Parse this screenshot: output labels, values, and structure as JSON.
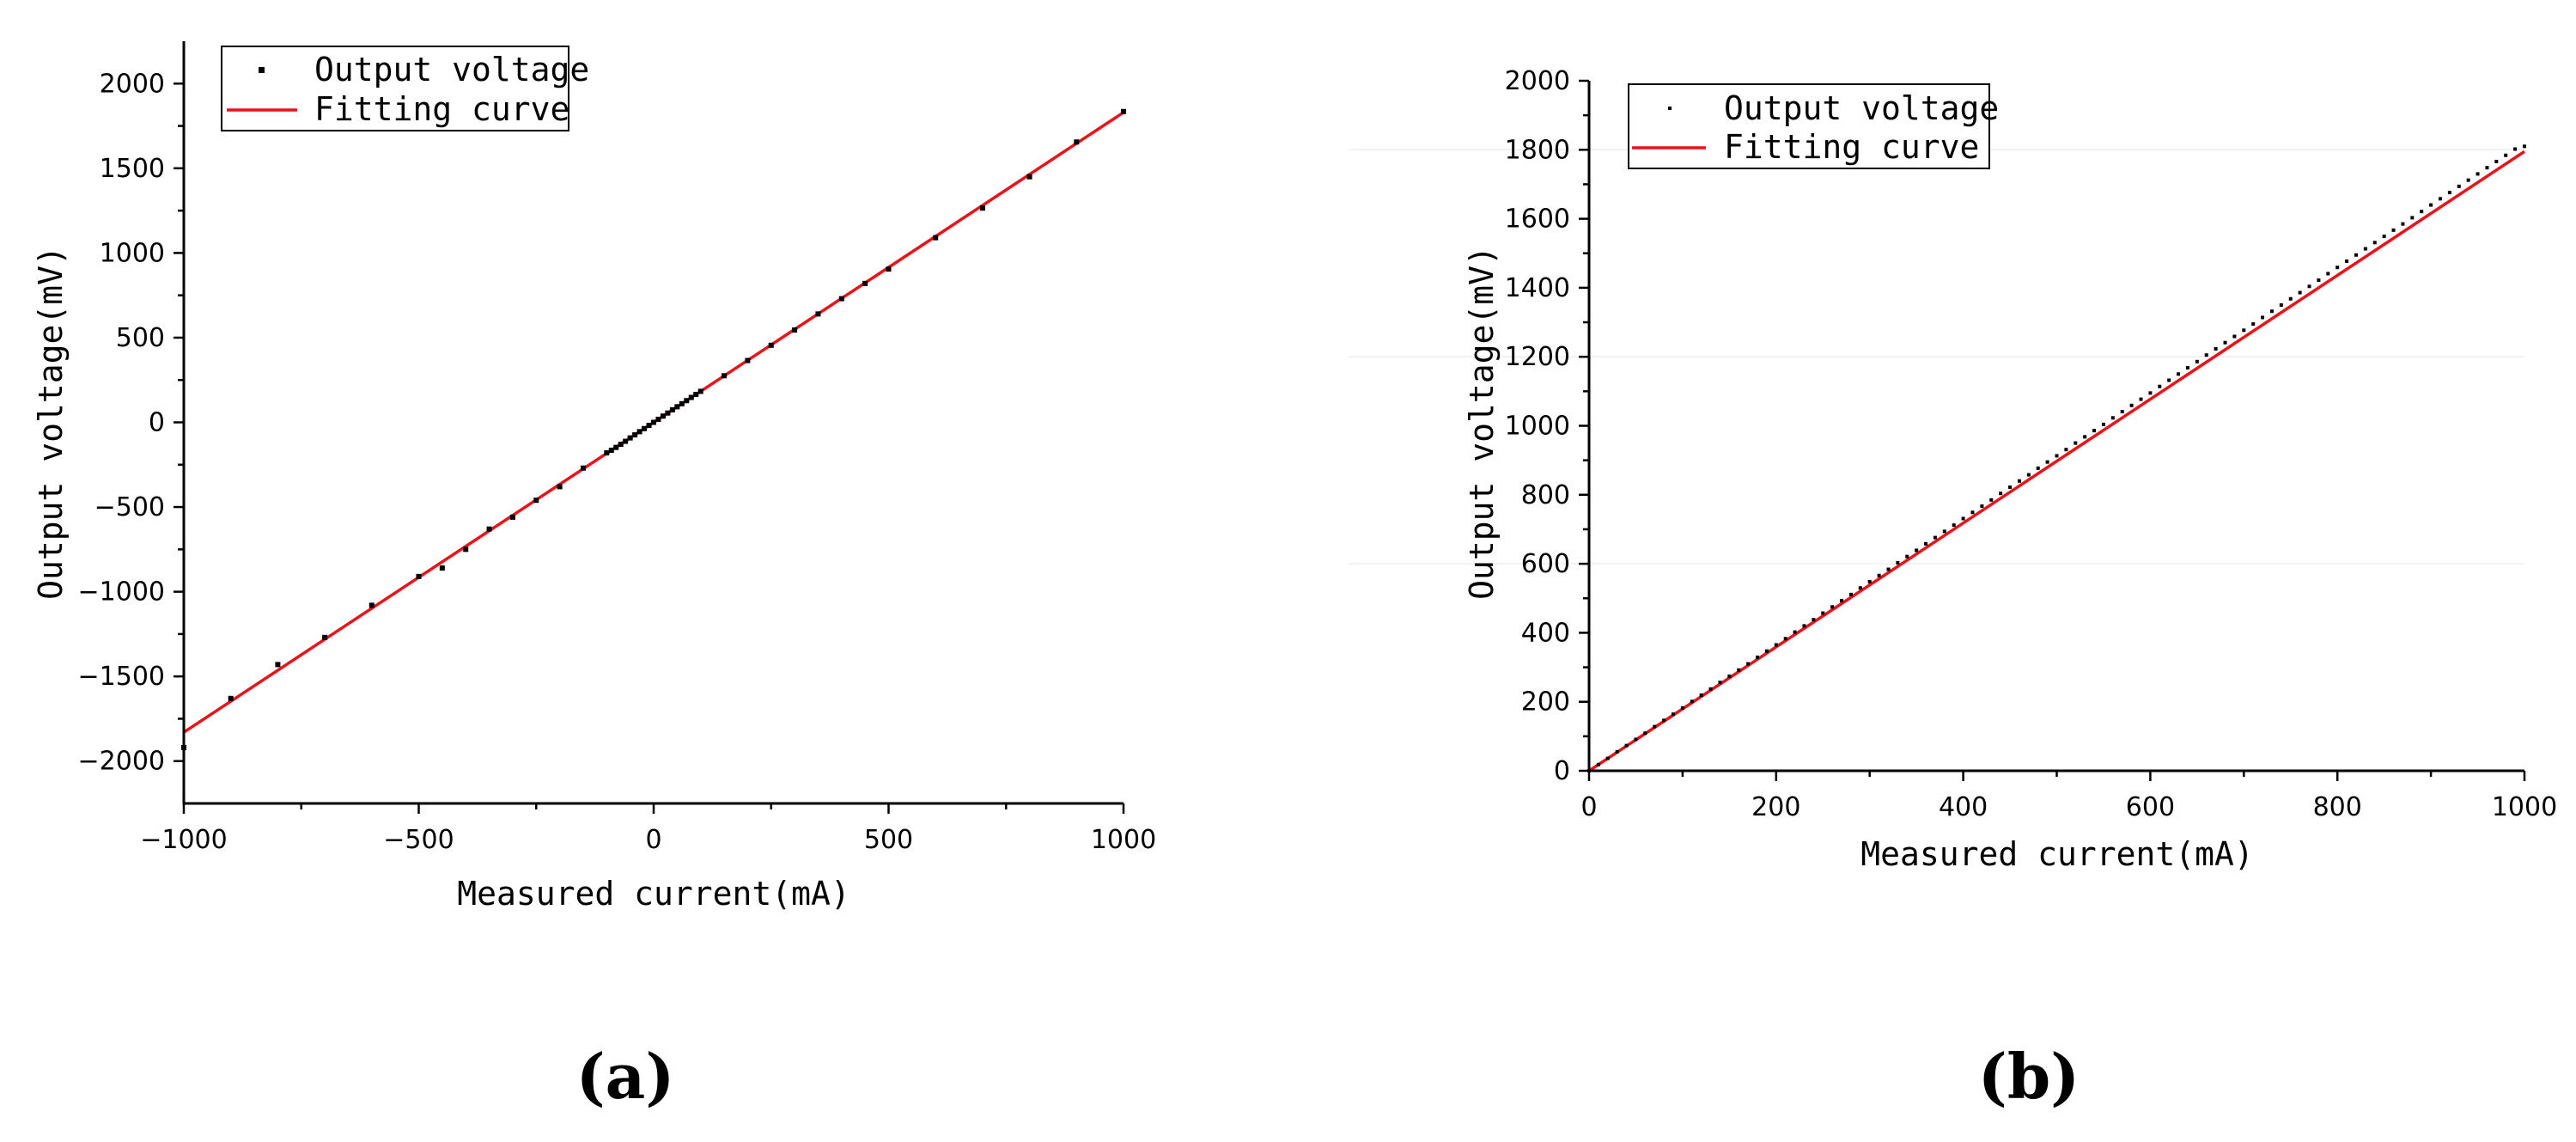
{
  "chart_data": [
    {
      "type": "scatter",
      "panel_label": "(a)",
      "xlabel": "Measured current(mA)",
      "ylabel": "Output voltage(mV)",
      "xlim": [
        -1000,
        1000
      ],
      "ylim": [
        -2250,
        2250
      ],
      "x_ticks": [
        -1000,
        -500,
        0,
        500,
        1000
      ],
      "y_ticks": [
        -2000,
        -1500,
        -1000,
        -500,
        0,
        500,
        1000,
        1500,
        2000
      ],
      "x_tick_labels": [
        "−1000",
        "−500",
        "0",
        "500",
        "1000"
      ],
      "y_tick_labels": [
        "−2000",
        "−1500",
        "−1000",
        "−500",
        "0",
        "500",
        "1000",
        "1500",
        "2000"
      ],
      "legend_position": "top-left",
      "legend": [
        "Output voltage",
        "Fitting curve"
      ],
      "series": [
        {
          "name": "Output voltage",
          "kind": "points",
          "color": "#000000",
          "x": [
            -1000,
            -900,
            -800,
            -700,
            -600,
            -500,
            -450,
            -400,
            -350,
            -300,
            -250,
            -200,
            -150,
            -100,
            -90,
            -80,
            -70,
            -60,
            -50,
            -40,
            -30,
            -20,
            -10,
            0,
            10,
            20,
            30,
            40,
            50,
            60,
            70,
            80,
            90,
            100,
            150,
            200,
            250,
            300,
            350,
            400,
            450,
            500,
            600,
            700,
            800,
            900,
            1000
          ],
          "y": [
            -1920,
            -1630,
            -1430,
            -1270,
            -1080,
            -910,
            -860,
            -750,
            -630,
            -560,
            -460,
            -380,
            -270,
            -180,
            -165,
            -148,
            -130,
            -112,
            -92,
            -74,
            -55,
            -37,
            -18,
            0,
            18,
            37,
            55,
            74,
            92,
            110,
            128,
            147,
            165,
            183,
            275,
            365,
            455,
            545,
            640,
            730,
            820,
            905,
            1090,
            1265,
            1450,
            1655,
            1835
          ]
        },
        {
          "name": "Fitting curve",
          "kind": "line",
          "color": "#e8141a",
          "x": [
            -1000,
            1000
          ],
          "y": [
            -1830,
            1830
          ]
        }
      ]
    },
    {
      "type": "scatter",
      "panel_label": "(b)",
      "xlabel": "Measured current(mA)",
      "ylabel": "Output voltage(mV)",
      "xlim": [
        0,
        1000
      ],
      "ylim": [
        0,
        2000
      ],
      "x_ticks": [
        0,
        200,
        400,
        600,
        800,
        1000
      ],
      "y_ticks": [
        0,
        200,
        400,
        600,
        800,
        1000,
        1200,
        1400,
        1600,
        1800,
        2000
      ],
      "x_tick_labels": [
        "0",
        "200",
        "400",
        "600",
        "800",
        "1000"
      ],
      "y_tick_labels": [
        "0",
        "200",
        "400",
        "600",
        "800",
        "1000",
        "1200",
        "1400",
        "1600",
        "1800",
        "2000"
      ],
      "legend_position": "top-left",
      "legend": [
        "Output voltage",
        "Fitting curve"
      ],
      "series": [
        {
          "name": "Output voltage",
          "kind": "points",
          "color": "#000000",
          "x_start": 0,
          "x_step": 10,
          "count": 101,
          "y": [
            0,
            18,
            36,
            55,
            73,
            91,
            109,
            128,
            146,
            164,
            182,
            201,
            219,
            237,
            256,
            274,
            292,
            310,
            329,
            347,
            365,
            383,
            402,
            420,
            438,
            457,
            475,
            493,
            511,
            530,
            548,
            566,
            584,
            603,
            621,
            639,
            658,
            676,
            694,
            712,
            731,
            749,
            767,
            785,
            804,
            822,
            840,
            858,
            877,
            895,
            913,
            931,
            950,
            968,
            986,
            1004,
            1023,
            1041,
            1059,
            1077,
            1095,
            1114,
            1132,
            1150,
            1168,
            1186,
            1205,
            1223,
            1241,
            1259,
            1277,
            1295,
            1314,
            1332,
            1350,
            1368,
            1386,
            1404,
            1422,
            1441,
            1459,
            1477,
            1495,
            1513,
            1531,
            1549,
            1567,
            1585,
            1603,
            1621,
            1640,
            1658,
            1676,
            1694,
            1712,
            1730,
            1748,
            1766,
            1784,
            1802,
            1810
          ]
        },
        {
          "name": "Fitting curve",
          "kind": "line",
          "color": "#e8141a",
          "x": [
            0,
            1000
          ],
          "y": [
            0,
            1795
          ]
        }
      ]
    }
  ]
}
